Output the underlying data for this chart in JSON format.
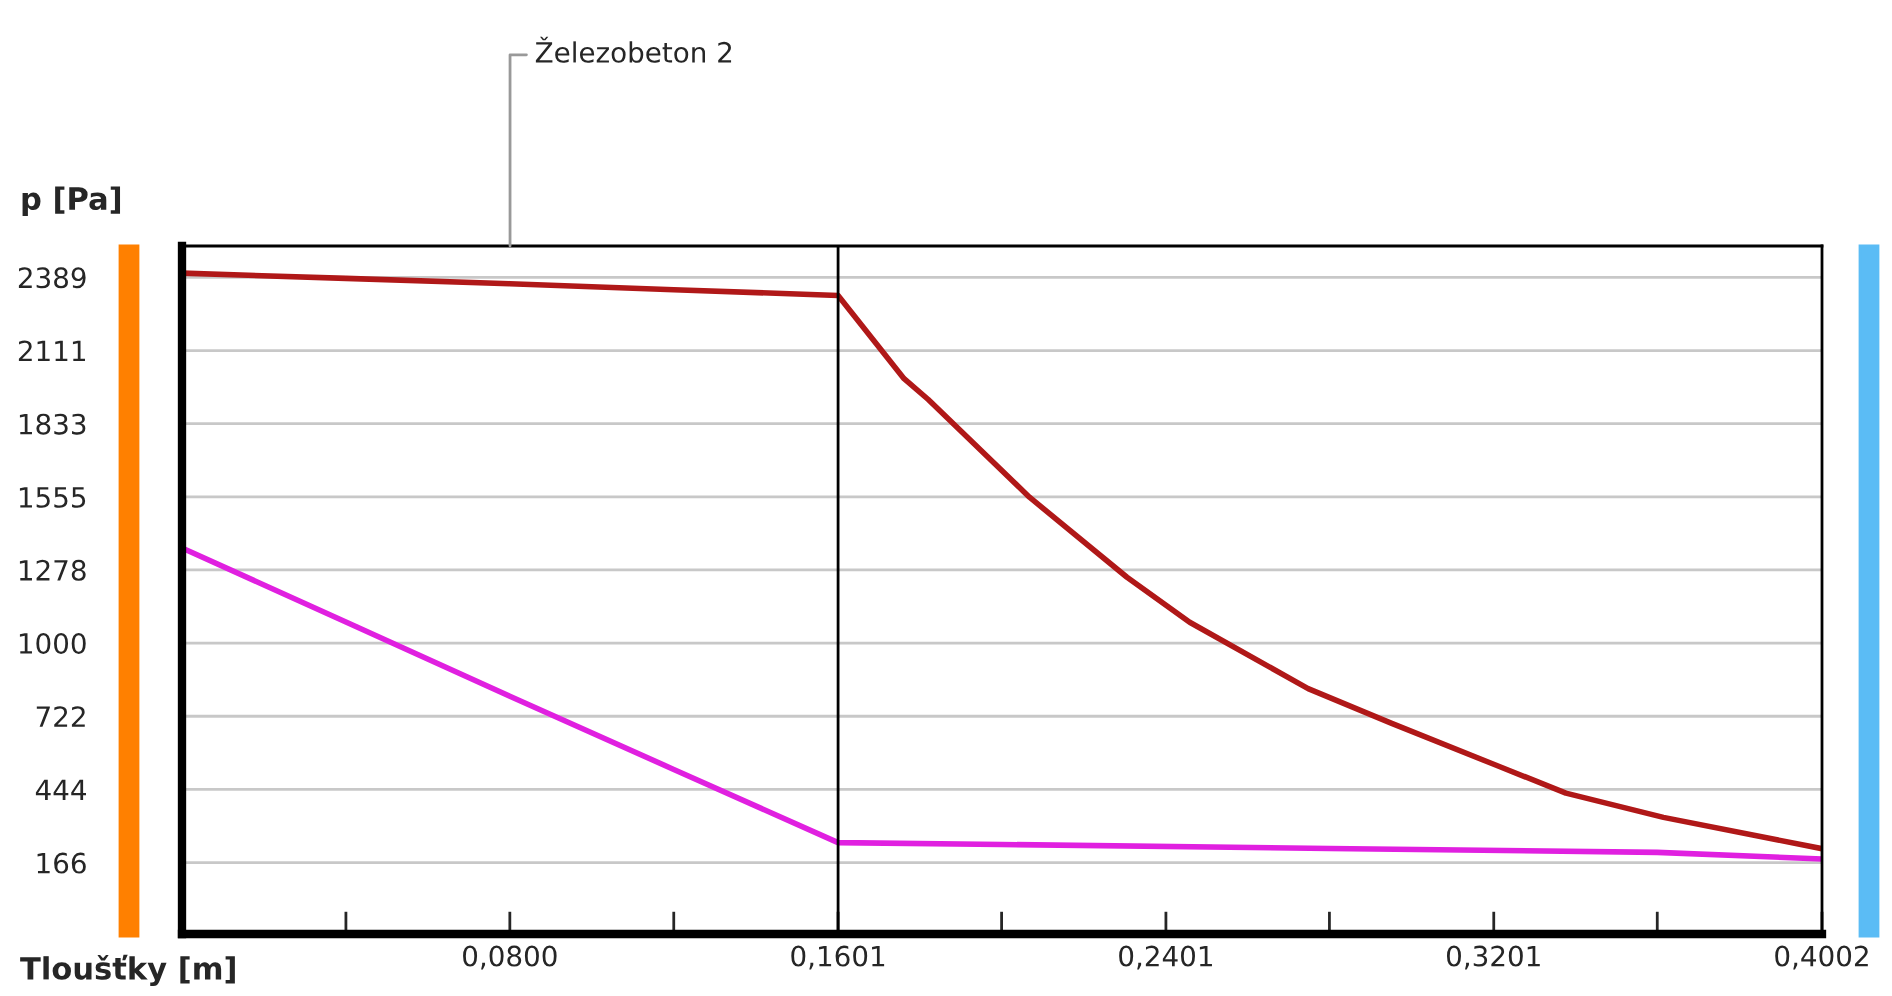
{
  "chart_data": {
    "type": "line",
    "xlabel": "Tloušťky [m]",
    "ylabel": "p [Pa]",
    "xlim": [
      0,
      0.4002
    ],
    "ylim": [
      -105,
      2508
    ],
    "xticks": [
      {
        "value": 0.04,
        "label": null
      },
      {
        "value": 0.08,
        "label": "0,0800"
      },
      {
        "value": 0.12,
        "label": null
      },
      {
        "value": 0.1601,
        "label": "0,1601"
      },
      {
        "value": 0.2,
        "label": null
      },
      {
        "value": 0.2401,
        "label": "0,2401"
      },
      {
        "value": 0.28,
        "label": null
      },
      {
        "value": 0.3201,
        "label": "0,3201"
      },
      {
        "value": 0.36,
        "label": null
      },
      {
        "value": 0.4002,
        "label": "0,4002"
      }
    ],
    "yticks": [
      166,
      444,
      722,
      1000,
      1278,
      1555,
      1833,
      2111,
      2389
    ],
    "grid": "y",
    "legend": false,
    "line_style": "solid",
    "series": [
      {
        "color": "#b01818",
        "x": [
          0,
          0.04,
          0.08,
          0.12,
          0.1601,
          0.1762,
          0.1821,
          0.2068,
          0.2306,
          0.2459,
          0.2748,
          0.2952,
          0.3207,
          0.3377,
          0.3615,
          0.4002
        ],
        "values": [
          2405,
          2385,
          2365,
          2342,
          2320,
          2004,
          1925,
          1554,
          1250,
          1079,
          827,
          695,
          536,
          430,
          338,
          219
        ]
      },
      {
        "color": "#e020e0",
        "x": [
          0,
          0.04,
          0.08,
          0.12,
          0.1601,
          0.2,
          0.28,
          0.36,
          0.4002
        ],
        "values": [
          1361,
          1080,
          798,
          520,
          242,
          235,
          220,
          205,
          180
        ]
      }
    ],
    "ref_lines": [
      {
        "axis": "x",
        "value": 0.1601,
        "color": "#000000"
      }
    ],
    "annotations": [
      "Železobeton 2"
    ]
  }
}
